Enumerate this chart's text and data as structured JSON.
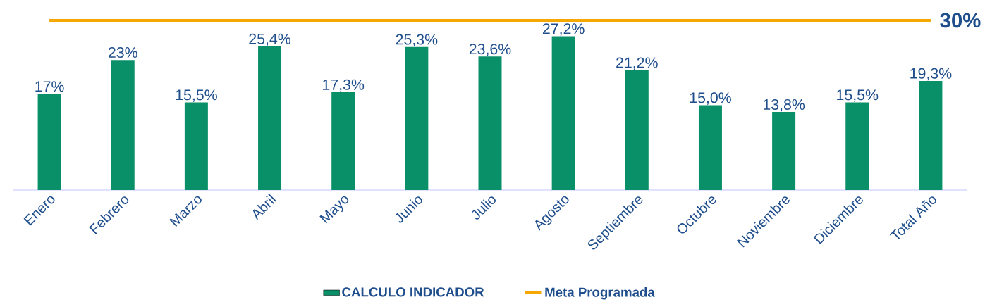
{
  "chart_data": {
    "type": "bar",
    "categories": [
      "Enero",
      "Febrero",
      "Marzo",
      "Abril",
      "Mayo",
      "Junio",
      "Julio",
      "Agosto",
      "Septiembre",
      "Octubre",
      "Noviembre",
      "Diciembre",
      "Total Año"
    ],
    "series": [
      {
        "name": "CALCULO INDICADOR",
        "color": "#0a9068",
        "values": [
          17,
          23,
          15.5,
          25.4,
          17.3,
          25.3,
          23.6,
          27.2,
          21.2,
          15.0,
          13.8,
          15.5,
          19.3
        ],
        "value_labels": [
          "17%",
          "23%",
          "15,5%",
          "25,4%",
          "17,3%",
          "25,3%",
          "23,6%",
          "27,2%",
          "21,2%",
          "15,0%",
          "13,8%",
          "15,5%",
          "19,3%"
        ]
      },
      {
        "name": "Meta Programada",
        "type": "line",
        "color": "#f5a800",
        "values": [
          30,
          30,
          30,
          30,
          30,
          30,
          30,
          30,
          30,
          30,
          30,
          30,
          30
        ],
        "value_labels": [
          null,
          null,
          null,
          null,
          null,
          null,
          null,
          null,
          null,
          null,
          null,
          null,
          "30%"
        ]
      }
    ],
    "tick_labels": "x",
    "legend": "bottom"
  }
}
